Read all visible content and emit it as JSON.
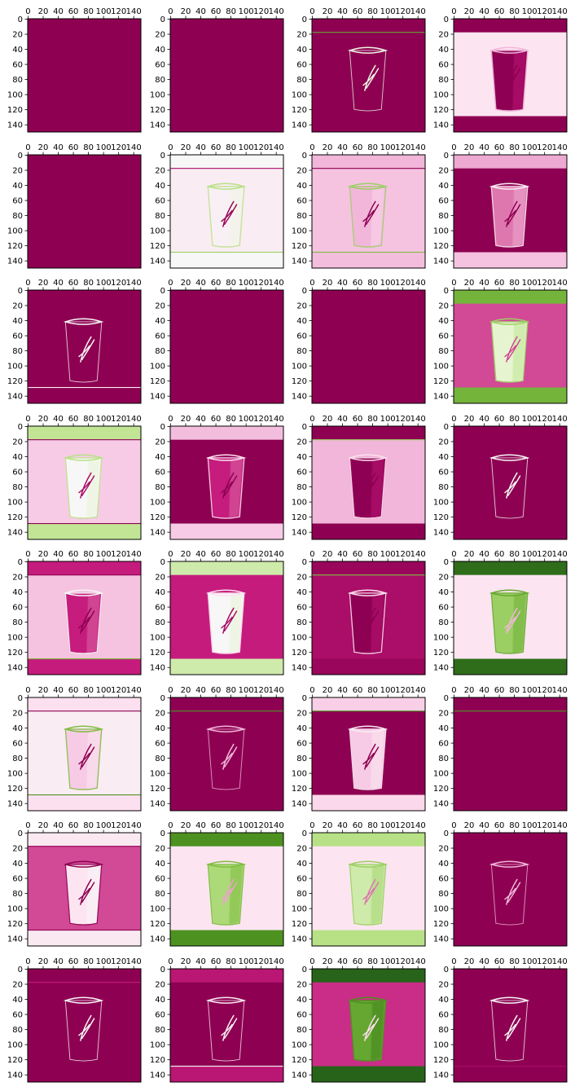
{
  "chart_data": {
    "type": "heatmap",
    "layout": {
      "rows": 8,
      "cols": 4
    },
    "colormap": {
      "name": "PiYG",
      "stops": [
        "#8e0152",
        "#c51b7d",
        "#de77ae",
        "#f1b6da",
        "#fde0ef",
        "#f7f7f7",
        "#e6f5d0",
        "#b8e186",
        "#7fbc41",
        "#4d9221",
        "#276419"
      ]
    },
    "x_ticks": [
      "0",
      "20",
      "40",
      "60",
      "80",
      "100",
      "120",
      "140"
    ],
    "y_ticks": [
      "0",
      "20",
      "40",
      "60",
      "80",
      "100",
      "120",
      "140"
    ],
    "image_size": [
      150,
      150
    ],
    "panels": [
      {
        "bg": 0.0,
        "bands": null,
        "cup": null,
        "lines": []
      },
      {
        "bg": 0.0,
        "bands": null,
        "cup": null,
        "lines": []
      },
      {
        "bg": 0.0,
        "bands": null,
        "cup": {
          "fill": 0.0,
          "outline": 0.55
        },
        "lines": [
          {
            "y": 18,
            "v": 0.85
          }
        ]
      },
      {
        "bg": 0.42,
        "bands": [
          0.0,
          0.0
        ],
        "cup": {
          "fill": 0.0,
          "outline": 0.3
        },
        "lines": []
      },
      {
        "bg": 0.0,
        "bands": null,
        "cup": null,
        "lines": []
      },
      {
        "bg": 0.45,
        "bands": [
          0.5,
          0.5
        ],
        "cup": {
          "fill": 0.47,
          "outline": 0.7
        },
        "lines": [
          {
            "y": 18,
            "v": 0.05
          },
          {
            "y": 129,
            "v": 0.75
          }
        ]
      },
      {
        "bg": 0.33,
        "bands": [
          0.3,
          0.32
        ],
        "cup": {
          "fill": 0.3,
          "outline": 0.75
        },
        "lines": [
          {
            "y": 18,
            "v": 0.0
          },
          {
            "y": 129,
            "v": 0.8
          }
        ]
      },
      {
        "bg": 0.0,
        "bands": [
          0.28,
          0.33
        ],
        "cup": {
          "fill": 0.2,
          "outline": 0.45
        },
        "lines": []
      },
      {
        "bg": 0.0,
        "bands": null,
        "cup": {
          "fill": 0.0,
          "outline": 0.5
        },
        "lines": [
          {
            "y": 129,
            "v": 0.45
          }
        ]
      },
      {
        "bg": 0.0,
        "bands": null,
        "cup": null,
        "lines": []
      },
      {
        "bg": 0.0,
        "bands": null,
        "cup": null,
        "lines": []
      },
      {
        "bg": 0.15,
        "bands": [
          0.82,
          0.82
        ],
        "cup": {
          "fill": 0.6,
          "outline": 0.75
        },
        "lines": []
      },
      {
        "bg": 0.35,
        "bands": [
          0.68,
          0.68
        ],
        "cup": {
          "fill": 0.5,
          "outline": 0.7
        },
        "lines": [
          {
            "y": 18,
            "v": 0.0
          },
          {
            "y": 129,
            "v": 0.0
          }
        ]
      },
      {
        "bg": 0.0,
        "bands": [
          0.32,
          0.35
        ],
        "cup": {
          "fill": 0.1,
          "outline": 0.4
        },
        "lines": []
      },
      {
        "bg": 0.3,
        "bands": [
          0.0,
          0.0
        ],
        "cup": {
          "fill": 0.0,
          "outline": 0.4
        },
        "lines": [
          {
            "y": 18,
            "v": 0.75
          }
        ]
      },
      {
        "bg": 0.0,
        "bands": null,
        "cup": {
          "fill": 0.0,
          "outline": 0.5
        },
        "lines": []
      },
      {
        "bg": 0.33,
        "bands": [
          0.1,
          0.1
        ],
        "cup": {
          "fill": 0.1,
          "outline": 0.5
        },
        "lines": [
          {
            "y": 18,
            "v": 0.0
          },
          {
            "y": 129,
            "v": 0.8
          }
        ]
      },
      {
        "bg": 0.1,
        "bands": [
          0.65,
          0.65
        ],
        "cup": {
          "fill": 0.5,
          "outline": 0.4
        },
        "lines": []
      },
      {
        "bg": 0.05,
        "bands": [
          0.02,
          0.02
        ],
        "cup": {
          "fill": 0.0,
          "outline": 0.4
        },
        "lines": [
          {
            "y": 18,
            "v": 0.8
          }
        ]
      },
      {
        "bg": 0.42,
        "bands": [
          0.98,
          0.98
        ],
        "cup": {
          "fill": 0.75,
          "outline": 0.85
        },
        "lines": []
      },
      {
        "bg": 0.45,
        "bands": [
          0.4,
          0.4
        ],
        "cup": {
          "fill": 0.35,
          "outline": 0.8
        },
        "lines": [
          {
            "y": 18,
            "v": 0.0
          },
          {
            "y": 129,
            "v": 0.9
          }
        ]
      },
      {
        "bg": 0.0,
        "bands": null,
        "cup": {
          "fill": 0.0,
          "outline": 0.3
        },
        "lines": [
          {
            "y": 18,
            "v": 0.9
          }
        ]
      },
      {
        "bg": 0.0,
        "bands": [
          0.36,
          0.38
        ],
        "cup": {
          "fill": 0.35,
          "outline": 0.45
        },
        "lines": [
          {
            "y": 18,
            "v": 0.9
          }
        ]
      },
      {
        "bg": 0.0,
        "bands": null,
        "cup": null,
        "lines": [
          {
            "y": 18,
            "v": 0.9
          }
        ]
      },
      {
        "bg": 0.15,
        "bands": [
          0.44,
          0.44
        ],
        "cup": {
          "fill": 0.42,
          "outline": 0.0
        },
        "lines": [
          {
            "y": 18,
            "v": 0.0
          },
          {
            "y": 129,
            "v": 0.0
          }
        ]
      },
      {
        "bg": 0.42,
        "bands": [
          0.9,
          0.9
        ],
        "cup": {
          "fill": 0.72,
          "outline": 0.8
        },
        "lines": []
      },
      {
        "bg": 0.42,
        "bands": [
          0.7,
          0.7
        ],
        "cup": {
          "fill": 0.65,
          "outline": 0.75
        },
        "lines": []
      },
      {
        "bg": 0.0,
        "bands": null,
        "cup": {
          "fill": 0.0,
          "outline": 0.3
        },
        "lines": []
      },
      {
        "bg": 0.0,
        "bands": null,
        "cup": {
          "fill": 0.0,
          "outline": 0.5
        },
        "lines": [
          {
            "y": 18,
            "v": 0.1
          }
        ]
      },
      {
        "bg": 0.0,
        "bands": [
          0.08,
          0.08
        ],
        "cup": {
          "fill": 0.0,
          "outline": 0.45
        },
        "lines": [
          {
            "y": 129,
            "v": 0.5
          }
        ]
      },
      {
        "bg": 0.12,
        "bands": [
          1.0,
          1.0
        ],
        "cup": {
          "fill": 0.85,
          "outline": 0.9
        },
        "lines": []
      },
      {
        "bg": 0.0,
        "bands": null,
        "cup": {
          "fill": 0.0,
          "outline": 0.5
        },
        "lines": [
          {
            "y": 129,
            "v": 0.05
          }
        ]
      }
    ]
  }
}
